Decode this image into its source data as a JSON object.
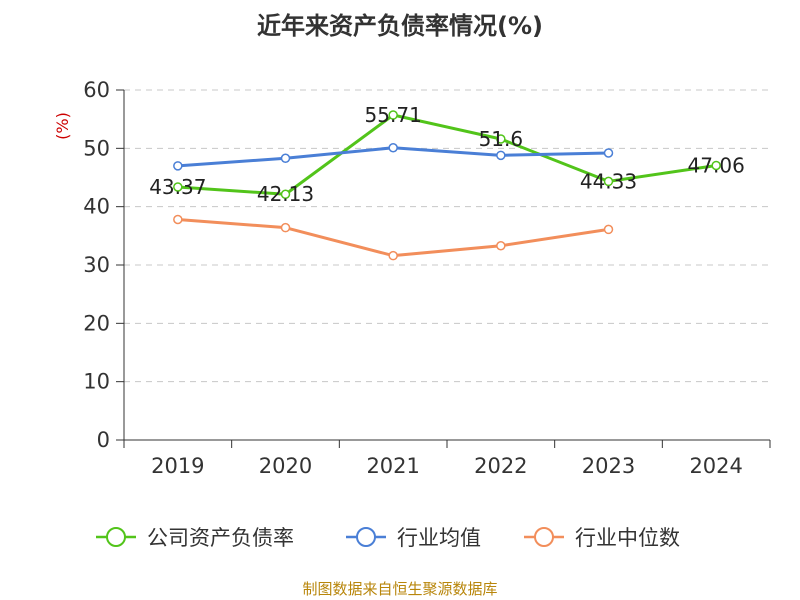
{
  "chart_data": {
    "type": "line",
    "title": "近年来资产负债率情况(%)",
    "ylabel": "(%)",
    "xlabel": "",
    "ylim": [
      0,
      60
    ],
    "yticks": [
      "0",
      "10",
      "20",
      "30",
      "40",
      "50",
      "60"
    ],
    "categories": [
      "2019",
      "2020",
      "2021",
      "2022",
      "2023",
      "2024"
    ],
    "grid": true,
    "legend_position": "bottom",
    "series": [
      {
        "name": "公司资产负债率",
        "color": "#52c41a",
        "values": [
          43.37,
          42.13,
          55.71,
          51.6,
          44.33,
          47.06
        ],
        "labels": [
          "43.37",
          "42.13",
          "55.71",
          "51.6",
          "44.33",
          "47.06"
        ]
      },
      {
        "name": "行业均值",
        "color": "#4a7fd6",
        "values": [
          47.0,
          48.3,
          50.1,
          48.8,
          49.2,
          null
        ]
      },
      {
        "name": "行业中位数",
        "color": "#f28e5b",
        "values": [
          37.8,
          36.4,
          31.6,
          33.3,
          36.1,
          null
        ]
      }
    ]
  },
  "footer": {
    "source": "制图数据来自恒生聚源数据库"
  }
}
